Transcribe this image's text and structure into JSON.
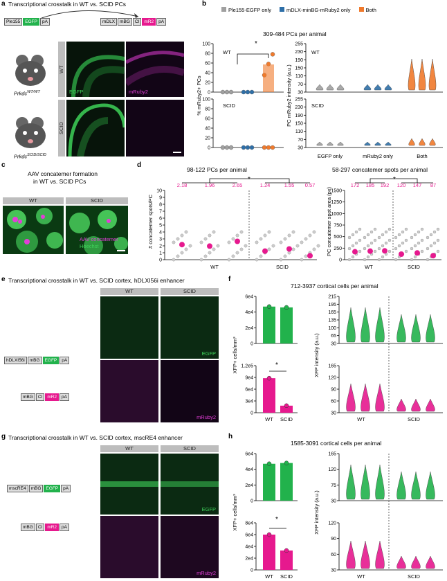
{
  "panels": {
    "a": {
      "label": "a",
      "title": "Transcriptional crosstalk in WT vs. SCID PCs",
      "construct1": [
        "Ple155",
        "EGFP",
        "pA"
      ],
      "construct2": [
        "mDLX",
        "mBG",
        "CI",
        "mR2",
        "pA"
      ],
      "genotype_wt": "Prkdc",
      "genotype_wt_sup": "WT/WT",
      "genotype_scid": "Prkdc",
      "genotype_scid_sup": "SCID/SCID",
      "row_labels": [
        "WT",
        "SCID"
      ],
      "channels": [
        "EGFP",
        "mRuby2"
      ]
    },
    "b": {
      "label": "b",
      "legend": [
        "Ple155-EGFP only",
        "mDLX-minBG-mRuby2 only",
        "Both"
      ],
      "legend_colors": [
        "#a0a0a0",
        "#2e6fa8",
        "#f07a2c"
      ],
      "subtitle": "309-484 PCs per animal",
      "ylabel_left": "% mRuby2+ PCs",
      "ylabel_right": "PC mRuby2 intensity (a.u.)",
      "row_labels": [
        "WT",
        "SCID"
      ],
      "left_ticks": [
        "0",
        "20",
        "40",
        "60",
        "80",
        "100"
      ],
      "right_ticks_top": [
        "30",
        "70",
        "110",
        "150",
        "190",
        "230",
        "255"
      ],
      "right_ticks_bottom": [
        "30",
        "70",
        "110",
        "150",
        "190",
        "230",
        "255"
      ],
      "categories": [
        "EGFP only",
        "mRuby2 only",
        "Both"
      ],
      "sig": "*"
    },
    "c": {
      "label": "c",
      "title_line1": "AAV concatemer formation",
      "title_line2": "in WT vs. SCID PCs",
      "col_labels": [
        "WT",
        "SCID"
      ],
      "legend1": "AAV concatemer",
      "legend2": "Hoechst"
    },
    "d": {
      "label": "d",
      "left_title": "98-122 PCs per animal",
      "right_title": "58-297 concatemer spots per animal",
      "ylabel_left": "# concatemer spots/PC",
      "ylabel_right": "PC concatemer spot area (px)",
      "left_ticks": [
        "0",
        "1",
        "2",
        "3",
        "4",
        "5",
        "6",
        "7",
        "8",
        "9",
        "10"
      ],
      "right_ticks": [
        "0",
        "250",
        "500",
        "750",
        "1000",
        "1250",
        "1500"
      ],
      "left_values": [
        "2.18",
        "1.96",
        "2.65",
        "1.24",
        "1.55",
        "0.57"
      ],
      "right_values": [
        "172",
        "185",
        "192",
        "120",
        "147",
        "87"
      ],
      "groups": [
        "WT",
        "SCID"
      ],
      "sig": "*"
    },
    "e": {
      "label": "e",
      "title": "Transcriptional crosstalk in WT vs. SCID cortex, hDLXI56i enhancer",
      "construct1": [
        "hDLXI56i",
        "mBG",
        "EGFP",
        "pA"
      ],
      "construct2": [
        "mBG",
        "CI",
        "mR2",
        "pA"
      ],
      "col_labels": [
        "WT",
        "SCID"
      ],
      "channels": [
        "EGFP",
        "mRuby2"
      ]
    },
    "f": {
      "label": "f",
      "title": "712-3937 cortical cells per animal",
      "ylabel_left": "XFP+ cells/mm³",
      "ylabel_right": "XFP intensity (a.u.)",
      "left_ticks_top": [
        "0",
        "2e4",
        "4e4",
        "6e4"
      ],
      "left_ticks_bottom": [
        "0",
        "3e4",
        "6e4",
        "9e4",
        "1.2e5"
      ],
      "right_ticks_top": [
        "30",
        "65",
        "100",
        "135",
        "165",
        "195",
        "215"
      ],
      "right_ticks_bottom": [
        "30",
        "60",
        "90",
        "120",
        "165"
      ],
      "groups": [
        "WT",
        "SCID"
      ],
      "sig": "*"
    },
    "g": {
      "label": "g",
      "title": "Transcriptional crosstalk in WT vs. SCID cortex, mscRE4 enhancer",
      "construct1": [
        "mscRE4",
        "mBG",
        "EGFP",
        "pA"
      ],
      "construct2": [
        "mBG",
        "CI",
        "mR2",
        "pA"
      ],
      "col_labels": [
        "WT",
        "SCID"
      ],
      "channels": [
        "EGFP",
        "mRuby2"
      ]
    },
    "h": {
      "label": "h",
      "title": "1585-3091 cortical cells per animal",
      "ylabel_left": "XFP+ cells/mm³",
      "ylabel_right": "XFP intensity (a.u.)",
      "left_ticks_top": [
        "0",
        "2e4",
        "4e4",
        "6e4"
      ],
      "left_ticks_bottom": [
        "0",
        "2e4",
        "4e4",
        "6e4",
        "8e4"
      ],
      "right_ticks_top": [
        "30",
        "75",
        "120",
        "165"
      ],
      "right_ticks_bottom": [
        "30",
        "60",
        "90",
        "120"
      ],
      "groups": [
        "WT",
        "SCID"
      ],
      "sig": "*"
    }
  },
  "chart_data": [
    {
      "type": "bar",
      "panel": "b-WT",
      "categories": [
        "Ple155-EGFP only",
        "mDLX-minBG-mRuby2 only",
        "Both"
      ],
      "values": [
        0,
        0,
        57
      ],
      "points": [
        [
          0,
          0,
          0
        ],
        [
          0,
          0,
          0
        ],
        [
          35,
          58,
          78
        ]
      ],
      "ylim": [
        0,
        100
      ]
    },
    {
      "type": "bar",
      "panel": "b-SCID",
      "categories": [
        "Ple155-EGFP only",
        "mDLX-minBG-mRuby2 only",
        "Both"
      ],
      "values": [
        0,
        0,
        0
      ],
      "ylim": [
        0,
        100
      ]
    },
    {
      "type": "scatter",
      "panel": "d-left",
      "categories": [
        "WT-1",
        "WT-2",
        "WT-3",
        "SCID-1",
        "SCID-2",
        "SCID-3"
      ],
      "values": [
        2.18,
        1.96,
        2.65,
        1.24,
        1.55,
        0.57
      ],
      "ylim": [
        0,
        10
      ]
    },
    {
      "type": "scatter",
      "panel": "d-right",
      "categories": [
        "WT-1",
        "WT-2",
        "WT-3",
        "SCID-1",
        "SCID-2",
        "SCID-3"
      ],
      "values": [
        172,
        185,
        192,
        120,
        147,
        87
      ],
      "ylim": [
        0,
        1500
      ]
    },
    {
      "type": "bar",
      "panel": "f-EGFP",
      "categories": [
        "WT",
        "SCID"
      ],
      "values": [
        47000,
        46000
      ],
      "ylim": [
        0,
        60000
      ]
    },
    {
      "type": "bar",
      "panel": "f-mRuby2",
      "categories": [
        "WT",
        "SCID"
      ],
      "values": [
        88000,
        18000
      ],
      "ylim": [
        0,
        120000
      ]
    },
    {
      "type": "bar",
      "panel": "h-EGFP",
      "categories": [
        "WT",
        "SCID"
      ],
      "values": [
        47000,
        48000
      ],
      "ylim": [
        0,
        60000
      ]
    },
    {
      "type": "bar",
      "panel": "h-mRuby2",
      "categories": [
        "WT",
        "SCID"
      ],
      "values": [
        60000,
        33000
      ],
      "ylim": [
        0,
        80000
      ]
    }
  ]
}
